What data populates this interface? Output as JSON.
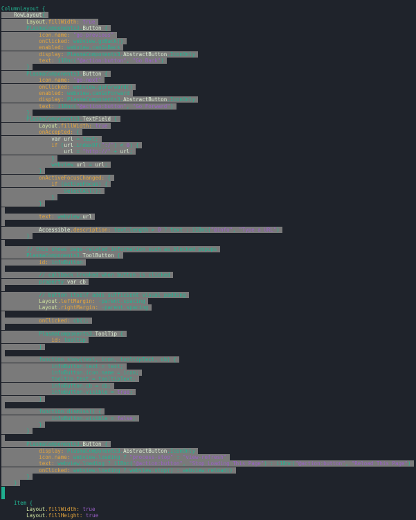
{
  "editor": {
    "colors": {
      "background": "#1f232b",
      "selection": "#7a7a7a",
      "teal": "#22b593",
      "orange": "#e3a43c",
      "purple": "#9b5fc9",
      "light": "#d9ecd2",
      "cursor": "#1fae8f"
    },
    "selection_lines": [
      2,
      74
    ],
    "cursor_line": 75,
    "lines": [
      [
        [
          "c",
          "ColumnLayout {"
        ]
      ],
      [
        [
          "w",
          "    RowLayout"
        ],
        [
          "c",
          "{"
        ]
      ],
      [
        [
          "y",
          "        Layout"
        ],
        [
          "o",
          ".fillWidth: "
        ],
        [
          "p",
          "true"
        ]
      ],
      [
        [
          "c",
          "        PlasmaComponents3."
        ],
        [
          "w",
          "Button"
        ],
        [
          "c",
          " {"
        ]
      ],
      [
        [
          "o",
          "            icon.name: "
        ],
        [
          "p",
          "\"go-previous\""
        ]
      ],
      [
        [
          "o",
          "            onClicked: "
        ],
        [
          "c",
          "webview.goBack()"
        ]
      ],
      [
        [
          "o",
          "            enabled: "
        ],
        [
          "c",
          "webview.canGoBack"
        ]
      ],
      [
        [
          "o",
          "            display: "
        ],
        [
          "c",
          "PlasmaComponents3."
        ],
        [
          "w",
          "AbstractButton"
        ],
        [
          "c",
          ".IconOnly"
        ]
      ],
      [
        [
          "o",
          "            text: "
        ],
        [
          "c",
          "i18nc("
        ],
        [
          "p",
          "\"@action:button\""
        ],
        [
          "c",
          ", "
        ],
        [
          "p",
          "\"Go Back\""
        ],
        [
          "c",
          ")"
        ]
      ],
      [
        [
          "c",
          "        }"
        ]
      ],
      [
        [
          "c",
          "        PlasmaComponents3."
        ],
        [
          "w",
          "Button"
        ],
        [
          "c",
          " {"
        ]
      ],
      [
        [
          "o",
          "            icon.name: "
        ],
        [
          "p",
          "\"go-next\""
        ]
      ],
      [
        [
          "o",
          "            onClicked: "
        ],
        [
          "c",
          "webview.goForward()"
        ]
      ],
      [
        [
          "o",
          "            enabled: "
        ],
        [
          "c",
          "webview.canGoForward"
        ]
      ],
      [
        [
          "o",
          "            display: "
        ],
        [
          "c",
          "PlasmaComponents3."
        ],
        [
          "w",
          "AbstractButton"
        ],
        [
          "c",
          ".IconOnly"
        ]
      ],
      [
        [
          "o",
          "            text: "
        ],
        [
          "c",
          "i18nc("
        ],
        [
          "p",
          "\"@action:button\""
        ],
        [
          "c",
          ", "
        ],
        [
          "p",
          "\"Go Forward\""
        ],
        [
          "c",
          ")"
        ]
      ],
      [
        [
          "c",
          "        }"
        ]
      ],
      [
        [
          "c",
          "        PlasmaComponents3."
        ],
        [
          "w",
          "TextField"
        ],
        [
          "c",
          " {"
        ]
      ],
      [
        [
          "y",
          "            Layout"
        ],
        [
          "o",
          ".fillWidth: "
        ],
        [
          "p",
          "true"
        ]
      ],
      [
        [
          "o",
          "            onAccepted: "
        ],
        [
          "c",
          "{"
        ]
      ],
      [
        [
          "w",
          "                var url"
        ],
        [
          "c",
          " = text;"
        ]
      ],
      [
        [
          "o",
          "                if "
        ],
        [
          "c",
          "("
        ],
        [
          "w",
          "url"
        ],
        [
          "c",
          ".indexOf("
        ],
        [
          "p",
          "\":/\""
        ],
        [
          "c",
          ") < "
        ],
        [
          "p",
          "0"
        ],
        [
          "c",
          ") {"
        ]
      ],
      [
        [
          "w",
          "                    url"
        ],
        [
          "c",
          " = "
        ],
        [
          "p",
          "\"http://\""
        ],
        [
          "c",
          " + "
        ],
        [
          "w",
          "url"
        ],
        [
          "c",
          ";"
        ]
      ],
      [
        [
          "c",
          "                }"
        ]
      ],
      [
        [
          "c",
          "                webview."
        ],
        [
          "w",
          "url"
        ],
        [
          "c",
          " = "
        ],
        [
          "w",
          "url"
        ],
        [
          "c",
          ";"
        ]
      ],
      [
        [
          "c",
          "            }"
        ]
      ],
      [
        [
          "o",
          "            onActiveFocusChanged: "
        ],
        [
          "c",
          "{"
        ]
      ],
      [
        [
          "o",
          "                if "
        ],
        [
          "c",
          "(activeFocus) {"
        ]
      ],
      [
        [
          "c",
          "                    selectAll();"
        ]
      ],
      [
        [
          "c",
          "                }"
        ]
      ],
      [
        [
          "c",
          "            }"
        ]
      ],
      [],
      [
        [
          "o",
          "            text: "
        ],
        [
          "c",
          "webview."
        ],
        [
          "w",
          "url"
        ]
      ],
      [],
      [
        [
          "w",
          "            Accessible"
        ],
        [
          "o",
          ".description: "
        ],
        [
          "c",
          "text.length > "
        ],
        [
          "p",
          "0"
        ],
        [
          "c",
          " ? text : i18nc("
        ],
        [
          "p",
          "\"@info\""
        ],
        [
          "c",
          ", "
        ],
        [
          "p",
          "\"Type a URL\""
        ],
        [
          "c",
          ")"
        ]
      ],
      [
        [
          "c",
          "        }"
        ]
      ],
      [],
      [
        [
          "c",
          "        // this shows page-related information such as blocked popups"
        ]
      ],
      [
        [
          "c",
          "        PlasmaComponents3."
        ],
        [
          "w",
          "ToolButton"
        ],
        [
          "c",
          " {"
        ]
      ],
      [
        [
          "o",
          "            id: "
        ],
        [
          "c",
          "infoButton"
        ]
      ],
      [],
      [
        [
          "c",
          "            // callback invoked when button is clicked"
        ]
      ],
      [
        [
          "c",
          "            property "
        ],
        [
          "w",
          "var cb"
        ]
      ],
      [],
      [
        [
          "c",
          "            // button itself adds sufficient visual padding"
        ]
      ],
      [
        [
          "y",
          "            Layout"
        ],
        [
          "o",
          ".leftMargin: "
        ],
        [
          "c",
          "-parent.spacing"
        ]
      ],
      [
        [
          "y",
          "            Layout"
        ],
        [
          "o",
          ".rightMargin: "
        ],
        [
          "c",
          "-parent.spacing"
        ]
      ],
      [],
      [
        [
          "o",
          "            onClicked: "
        ],
        [
          "c",
          "cb();"
        ]
      ],
      [],
      [
        [
          "c",
          "            PlasmaComponents3."
        ],
        [
          "w",
          "ToolTip"
        ],
        [
          "c",
          " {"
        ]
      ],
      [
        [
          "o",
          "                id: "
        ],
        [
          "c",
          "tooltip"
        ]
      ],
      [
        [
          "c",
          "            }"
        ]
      ],
      [],
      [
        [
          "c",
          "            function show(text, icon, tooltipText, cb) {"
        ]
      ],
      [
        [
          "c",
          "                infoButton.text = text;"
        ]
      ],
      [
        [
          "c",
          "                infoButton.icon.name = icon;"
        ]
      ],
      [
        [
          "c",
          "                tooltip.text = tooltipText;"
        ]
      ],
      [
        [
          "c",
          "                infoButton.cb = cb;"
        ]
      ],
      [
        [
          "c",
          "                infoButton.visible = "
        ],
        [
          "p",
          "true"
        ],
        [
          "c",
          ";"
        ]
      ],
      [
        [
          "c",
          "            }"
        ]
      ],
      [],
      [
        [
          "c",
          "            function dismiss() {"
        ]
      ],
      [
        [
          "c",
          "                infoButton.visible = "
        ],
        [
          "p",
          "false"
        ],
        [
          "c",
          ";"
        ]
      ],
      [
        [
          "c",
          "            }"
        ]
      ],
      [
        [
          "c",
          "        }"
        ]
      ],
      [],
      [
        [
          "c",
          "        PlasmaComponents3."
        ],
        [
          "w",
          "Button"
        ],
        [
          "c",
          " {"
        ]
      ],
      [
        [
          "o",
          "            display: "
        ],
        [
          "c",
          "PlasmaComponents3."
        ],
        [
          "w",
          "AbstractButton"
        ],
        [
          "c",
          ".IconOnly"
        ]
      ],
      [
        [
          "o",
          "            icon.name: "
        ],
        [
          "c",
          "webview.loading ? "
        ],
        [
          "p",
          "\"process-stop\""
        ],
        [
          "c",
          " : "
        ],
        [
          "p",
          "\"view-refresh\""
        ]
      ],
      [
        [
          "o",
          "            text: "
        ],
        [
          "c",
          "webview.loading ? i18nc("
        ],
        [
          "p",
          "\"@action:button\""
        ],
        [
          "c",
          ", "
        ],
        [
          "p",
          "\"Stop Loading This Page\""
        ],
        [
          "c",
          ") : i18nc("
        ],
        [
          "p",
          "\"@action:button\""
        ],
        [
          "c",
          ", "
        ],
        [
          "p",
          "\"Reload This Page\""
        ],
        [
          "c",
          ")"
        ]
      ],
      [
        [
          "o",
          "            onClicked: "
        ],
        [
          "c",
          "webview.loading ? webview.stop() : webview.reload()"
        ]
      ],
      [
        [
          "c",
          "        }"
        ]
      ],
      [
        [
          "c",
          "    }"
        ]
      ],
      [],
      [
        [
          "c",
          "    Item {"
        ]
      ],
      [
        [
          "y",
          "        Layout"
        ],
        [
          "o",
          ".fillWidth: "
        ],
        [
          "p",
          "true"
        ]
      ],
      [
        [
          "y",
          "        Layout"
        ],
        [
          "o",
          ".fillHeight: "
        ],
        [
          "p",
          "true"
        ]
      ]
    ]
  }
}
